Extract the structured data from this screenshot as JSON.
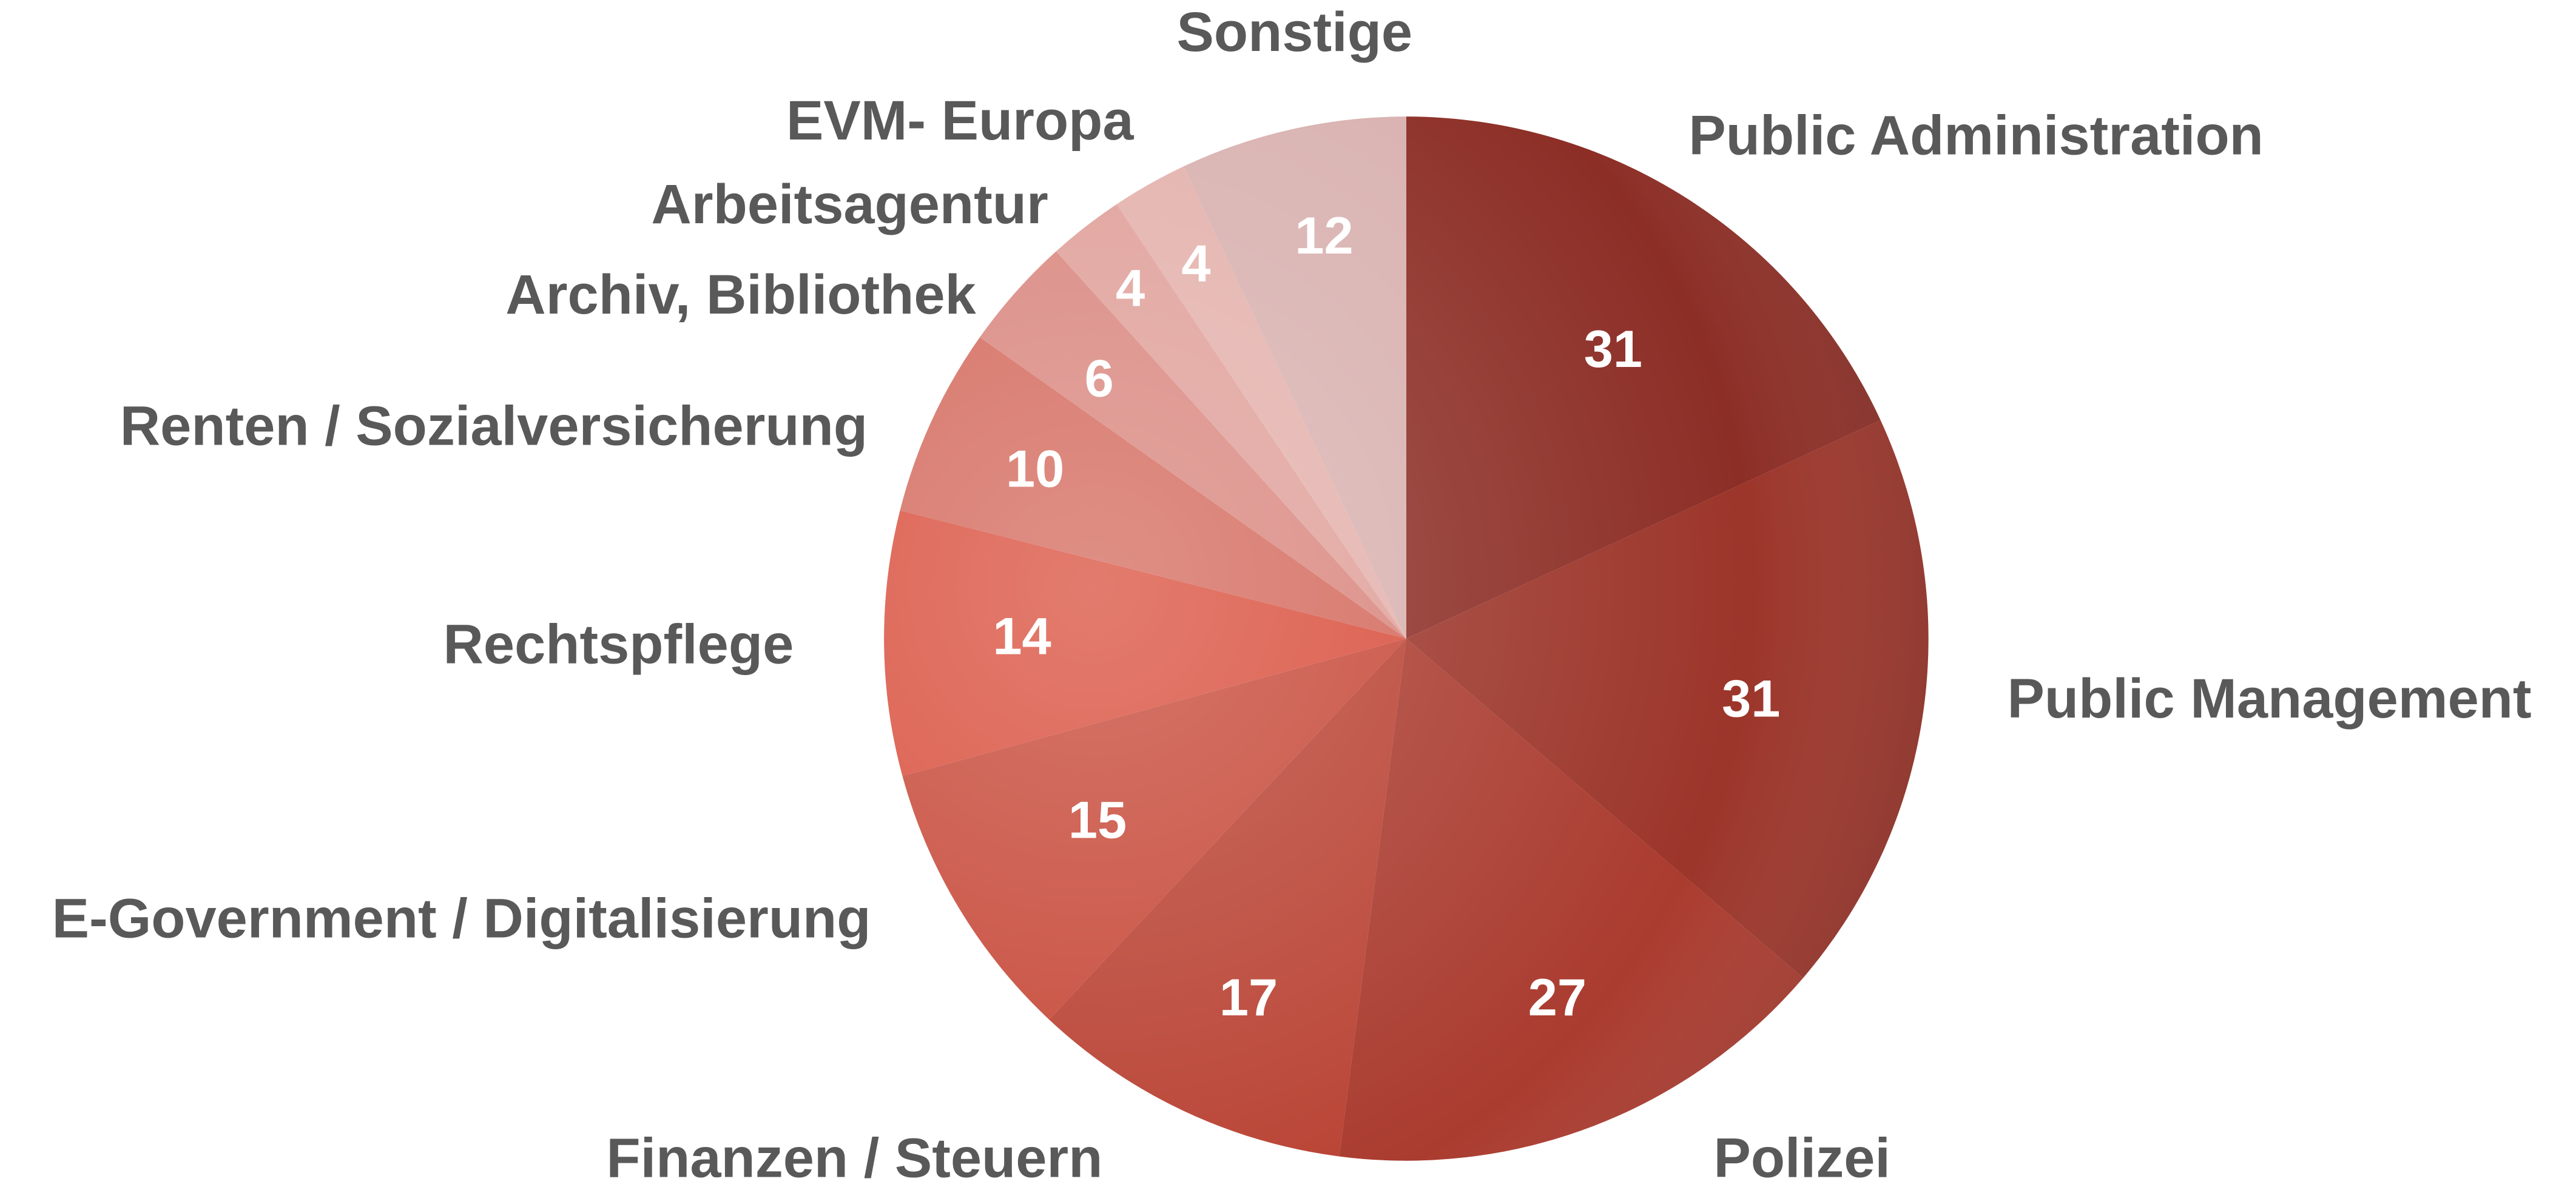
{
  "chart_data": {
    "type": "pie",
    "categories": [
      "Public Administration",
      "Public Management",
      "Polizei",
      "Finanzen / Steuern",
      "E-Government / Digitalisierung",
      "Rechtspflege",
      "Renten / Sozialversicherung",
      "Archiv, Bibliothek",
      "Arbeitsagentur",
      "EVM- Europa",
      "Sonstige"
    ],
    "values": [
      31,
      31,
      27,
      17,
      15,
      14,
      10,
      6,
      4,
      4,
      12
    ],
    "colors": [
      "#8c2e26",
      "#9c352a",
      "#aa3b2f",
      "#b94334",
      "#c74a3a",
      "#d9503e",
      "#d46a5d",
      "#d9877f",
      "#e0a09a",
      "#e4b1ac",
      "#d8b1af"
    ]
  }
}
